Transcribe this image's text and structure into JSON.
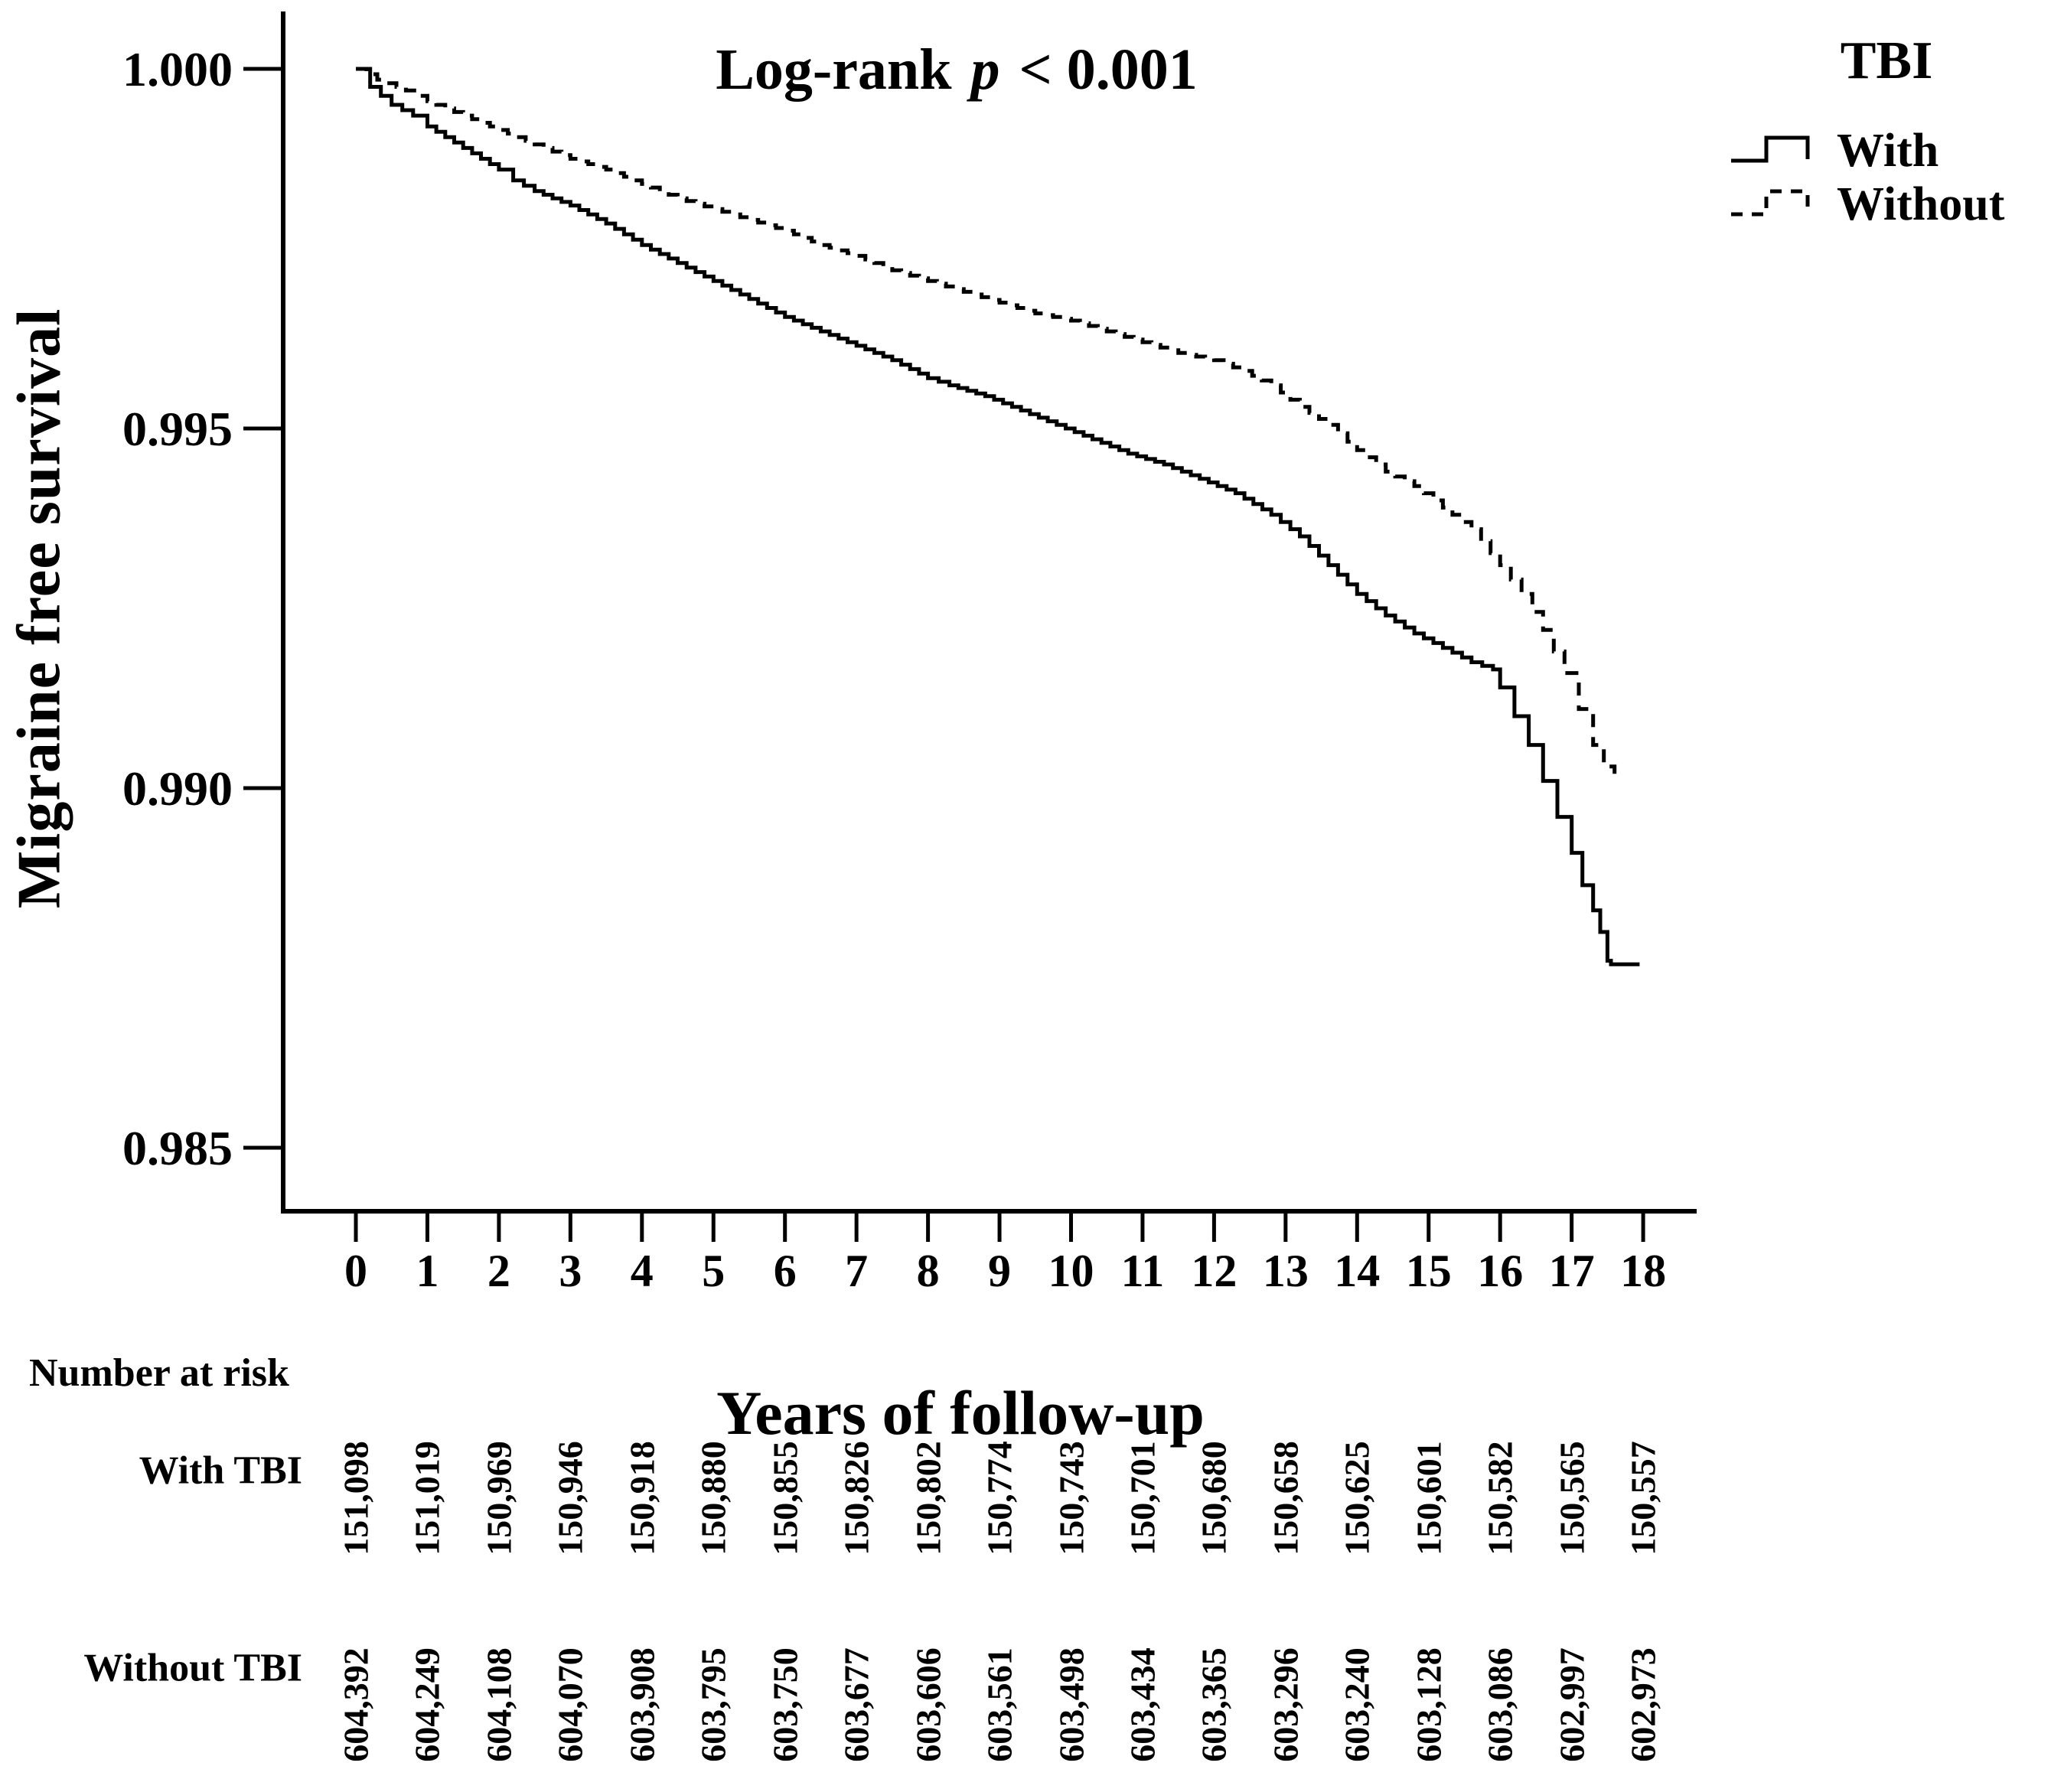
{
  "colors": {
    "ink": "#000000",
    "background": "#ffffff"
  },
  "annotation": {
    "prefix": "Log-rank ",
    "stat": "p",
    "suffix": " < 0.001"
  },
  "legend": {
    "title": "TBI",
    "items": [
      {
        "label": "With",
        "line_style": "solid"
      },
      {
        "label": "Without",
        "line_style": "dashed"
      }
    ]
  },
  "chart_data": {
    "type": "line",
    "subtype": "kaplan-meier-step",
    "title": "Log-rank p < 0.001",
    "xlabel": "Years of follow-up",
    "ylabel": "Migraine free survival",
    "xlim": [
      0,
      18
    ],
    "ylim": [
      0.984,
      1.0005
    ],
    "grid": false,
    "legend_position": "top-right",
    "x_axis": {
      "tick_labels": [
        "0",
        "1",
        "2",
        "3",
        "4",
        "5",
        "6",
        "7",
        "8",
        "9",
        "10",
        "11",
        "12",
        "13",
        "14",
        "15",
        "16",
        "17",
        "18"
      ],
      "tick_values": [
        0,
        1,
        2,
        3,
        4,
        5,
        6,
        7,
        8,
        9,
        10,
        11,
        12,
        13,
        14,
        15,
        16,
        17,
        18
      ]
    },
    "y_axis": {
      "tick_labels": [
        "1.000",
        "0.995",
        "0.990",
        "0.985"
      ],
      "tick_values": [
        1.0,
        0.995,
        0.99,
        0.985
      ]
    },
    "series": [
      {
        "name": "With",
        "line": "solid",
        "points": [
          [
            0,
            1.0
          ],
          [
            0.2,
            0.99975
          ],
          [
            0.5,
            0.9995
          ],
          [
            0.8,
            0.99935
          ],
          [
            1,
            0.9992
          ],
          [
            1.5,
            0.9989
          ],
          [
            2,
            0.9986
          ],
          [
            2.2,
            0.99845
          ],
          [
            2.5,
            0.9983
          ],
          [
            3,
            0.9981
          ],
          [
            3.5,
            0.99785
          ],
          [
            4,
            0.99755
          ],
          [
            4.5,
            0.9973
          ],
          [
            5,
            0.99705
          ],
          [
            5.5,
            0.9968
          ],
          [
            6,
            0.99655
          ],
          [
            6.5,
            0.99635
          ],
          [
            7,
            0.99615
          ],
          [
            7.5,
            0.99595
          ],
          [
            8,
            0.9957
          ],
          [
            8.3,
            0.9956
          ],
          [
            8.8,
            0.99545
          ],
          [
            9.3,
            0.99525
          ],
          [
            9.8,
            0.99505
          ],
          [
            10.3,
            0.99485
          ],
          [
            10.8,
            0.99465
          ],
          [
            11.3,
            0.9945
          ],
          [
            11.8,
            0.9943
          ],
          [
            12.3,
            0.9941
          ],
          [
            12.8,
            0.9938
          ],
          [
            13.2,
            0.9935
          ],
          [
            13.6,
            0.9931
          ],
          [
            14,
            0.9927
          ],
          [
            14.4,
            0.9924
          ],
          [
            14.8,
            0.99215
          ],
          [
            15.2,
            0.99195
          ],
          [
            15.6,
            0.99175
          ],
          [
            15.9,
            0.99165
          ],
          [
            16.0,
            0.9914
          ],
          [
            16.2,
            0.991
          ],
          [
            16.4,
            0.9906
          ],
          [
            16.6,
            0.9901
          ],
          [
            16.8,
            0.9896
          ],
          [
            17.0,
            0.9891
          ],
          [
            17.15,
            0.98865
          ],
          [
            17.3,
            0.9883
          ],
          [
            17.4,
            0.988
          ],
          [
            17.5,
            0.9876
          ],
          [
            17.55,
            0.98755
          ],
          [
            17.95,
            0.98755
          ]
        ]
      },
      {
        "name": "Without",
        "line": "dashed",
        "points": [
          [
            0,
            1.0
          ],
          [
            0.3,
            0.99985
          ],
          [
            0.7,
            0.9997
          ],
          [
            1,
            0.99955
          ],
          [
            1.5,
            0.99935
          ],
          [
            2,
            0.99915
          ],
          [
            2.5,
            0.99895
          ],
          [
            3,
            0.99875
          ],
          [
            3.5,
            0.9986
          ],
          [
            4,
            0.9984
          ],
          [
            4.5,
            0.9982
          ],
          [
            5,
            0.99805
          ],
          [
            5.5,
            0.9979
          ],
          [
            6,
            0.99775
          ],
          [
            6.5,
            0.99755
          ],
          [
            7,
            0.9974
          ],
          [
            7.5,
            0.9972
          ],
          [
            8,
            0.99705
          ],
          [
            8.5,
            0.9969
          ],
          [
            9,
            0.99675
          ],
          [
            9.5,
            0.9966
          ],
          [
            10,
            0.9965
          ],
          [
            10.5,
            0.99635
          ],
          [
            11,
            0.9962
          ],
          [
            11.5,
            0.99605
          ],
          [
            12,
            0.99595
          ],
          [
            12.4,
            0.9958
          ],
          [
            12.8,
            0.9956
          ],
          [
            13.2,
            0.9953
          ],
          [
            13.6,
            0.99505
          ],
          [
            14,
            0.9947
          ],
          [
            14.4,
            0.9944
          ],
          [
            14.8,
            0.9942
          ],
          [
            15.2,
            0.9939
          ],
          [
            15.6,
            0.9936
          ],
          [
            16,
            0.9931
          ],
          [
            16.3,
            0.9927
          ],
          [
            16.6,
            0.9922
          ],
          [
            16.9,
            0.9916
          ],
          [
            17.1,
            0.9911
          ],
          [
            17.3,
            0.9906
          ],
          [
            17.45,
            0.9903
          ],
          [
            17.6,
            0.9902
          ]
        ]
      }
    ]
  },
  "risk_table": {
    "heading": "Number at risk",
    "rows": [
      {
        "label": "With TBI",
        "values": [
          "151,098",
          "151,019",
          "150,969",
          "150,946",
          "150,918",
          "150,880",
          "150,855",
          "150,826",
          "150,802",
          "150,774",
          "150,743",
          "150,701",
          "150,680",
          "150,658",
          "150,625",
          "150,601",
          "150,582",
          "150,565",
          "150,557"
        ]
      },
      {
        "label": "Without TBI",
        "values": [
          "604,392",
          "604,249",
          "604,108",
          "604,070",
          "603,908",
          "603,795",
          "603,750",
          "603,677",
          "603,606",
          "603,561",
          "603,498",
          "603,434",
          "603,365",
          "603,296",
          "603,240",
          "603,128",
          "603,086",
          "602,997",
          "602,973"
        ]
      }
    ]
  }
}
